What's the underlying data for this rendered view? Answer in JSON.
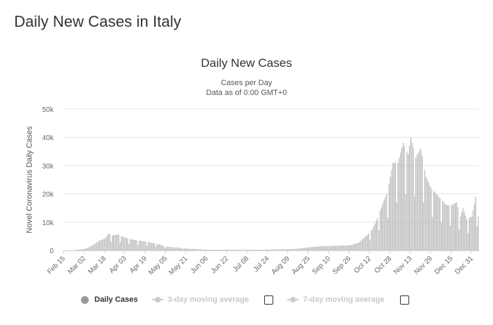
{
  "page_title": "Daily New Cases in Italy",
  "chart_data": {
    "type": "bar",
    "title": "Daily New Cases",
    "subtitle": "Cases per Day",
    "subtitle2": "Data as of 0:00 GMT+0",
    "ylabel": "Novel Coronavirus Daily Cases",
    "xlabel": "",
    "ylim": [
      0,
      50000
    ],
    "yticks": [
      0,
      10000,
      20000,
      30000,
      40000,
      50000
    ],
    "ytick_labels": [
      "0",
      "10k",
      "20k",
      "30k",
      "40k",
      "50k"
    ],
    "x_start": "2020-02-15",
    "x_end": "2021-01-05",
    "xtick_labels": [
      "Feb 15",
      "Mar 02",
      "Mar 18",
      "Apr 03",
      "Apr 19",
      "May 05",
      "May 21",
      "Jun 06",
      "Jun 22",
      "Jul 08",
      "Jul 24",
      "Aug 09",
      "Aug 25",
      "Sep 10",
      "Sep 26",
      "Oct 12",
      "Oct 28",
      "Nov 13",
      "Nov 29",
      "Dec 15",
      "Dec 31"
    ],
    "grid": true,
    "bar_color": "#b0b0b0",
    "series": [
      {
        "name": "Daily Cases",
        "anchor_dates": [
          "2020-02-15",
          "2020-02-21",
          "2020-02-25",
          "2020-03-02",
          "2020-03-06",
          "2020-03-10",
          "2020-03-14",
          "2020-03-18",
          "2020-03-21",
          "2020-03-24",
          "2020-03-28",
          "2020-04-03",
          "2020-04-08",
          "2020-04-13",
          "2020-04-19",
          "2020-04-25",
          "2020-05-01",
          "2020-05-05",
          "2020-05-12",
          "2020-05-21",
          "2020-06-01",
          "2020-06-06",
          "2020-06-22",
          "2020-07-08",
          "2020-07-24",
          "2020-08-09",
          "2020-08-16",
          "2020-08-25",
          "2020-09-01",
          "2020-09-10",
          "2020-09-26",
          "2020-10-03",
          "2020-10-10",
          "2020-10-14",
          "2020-10-18",
          "2020-10-22",
          "2020-10-26",
          "2020-10-30",
          "2020-11-03",
          "2020-11-07",
          "2020-11-11",
          "2020-11-13",
          "2020-11-17",
          "2020-11-21",
          "2020-11-25",
          "2020-11-29",
          "2020-12-03",
          "2020-12-07",
          "2020-12-11",
          "2020-12-15",
          "2020-12-19",
          "2020-12-22",
          "2020-12-24",
          "2020-12-27",
          "2020-12-31",
          "2021-01-03",
          "2021-01-05"
        ],
        "anchor_values": [
          0,
          0,
          200,
          550,
          1200,
          2300,
          3500,
          4200,
          6000,
          5300,
          5700,
          4500,
          3900,
          3500,
          3200,
          2600,
          1900,
          1300,
          1100,
          650,
          400,
          250,
          220,
          200,
          280,
          450,
          600,
          1100,
          1400,
          1600,
          1800,
          2700,
          5500,
          7500,
          11500,
          16500,
          21000,
          31000,
          31000,
          38000,
          34000,
          40000,
          33000,
          36000,
          26000,
          22000,
          20000,
          18000,
          16000,
          16000,
          17000,
          12000,
          15000,
          11000,
          12000,
          19000,
          12000
        ],
        "dips": [
          "2020-03-23",
          "2020-03-30",
          "2020-04-06",
          "2020-04-13",
          "2020-04-20",
          "2020-04-27",
          "2020-05-04",
          "2020-05-11",
          "2020-05-18",
          "2020-10-12",
          "2020-10-19",
          "2020-10-26",
          "2020-11-02",
          "2020-11-09",
          "2020-11-16",
          "2020-11-23",
          "2020-11-30",
          "2020-12-07",
          "2020-12-14",
          "2020-12-21",
          "2020-12-28",
          "2021-01-04"
        ]
      }
    ],
    "legend_position": "bottom"
  },
  "legend": {
    "daily_label": "Daily Cases",
    "avg3_label": "3-day moving average",
    "avg7_label": "7-day moving average"
  }
}
